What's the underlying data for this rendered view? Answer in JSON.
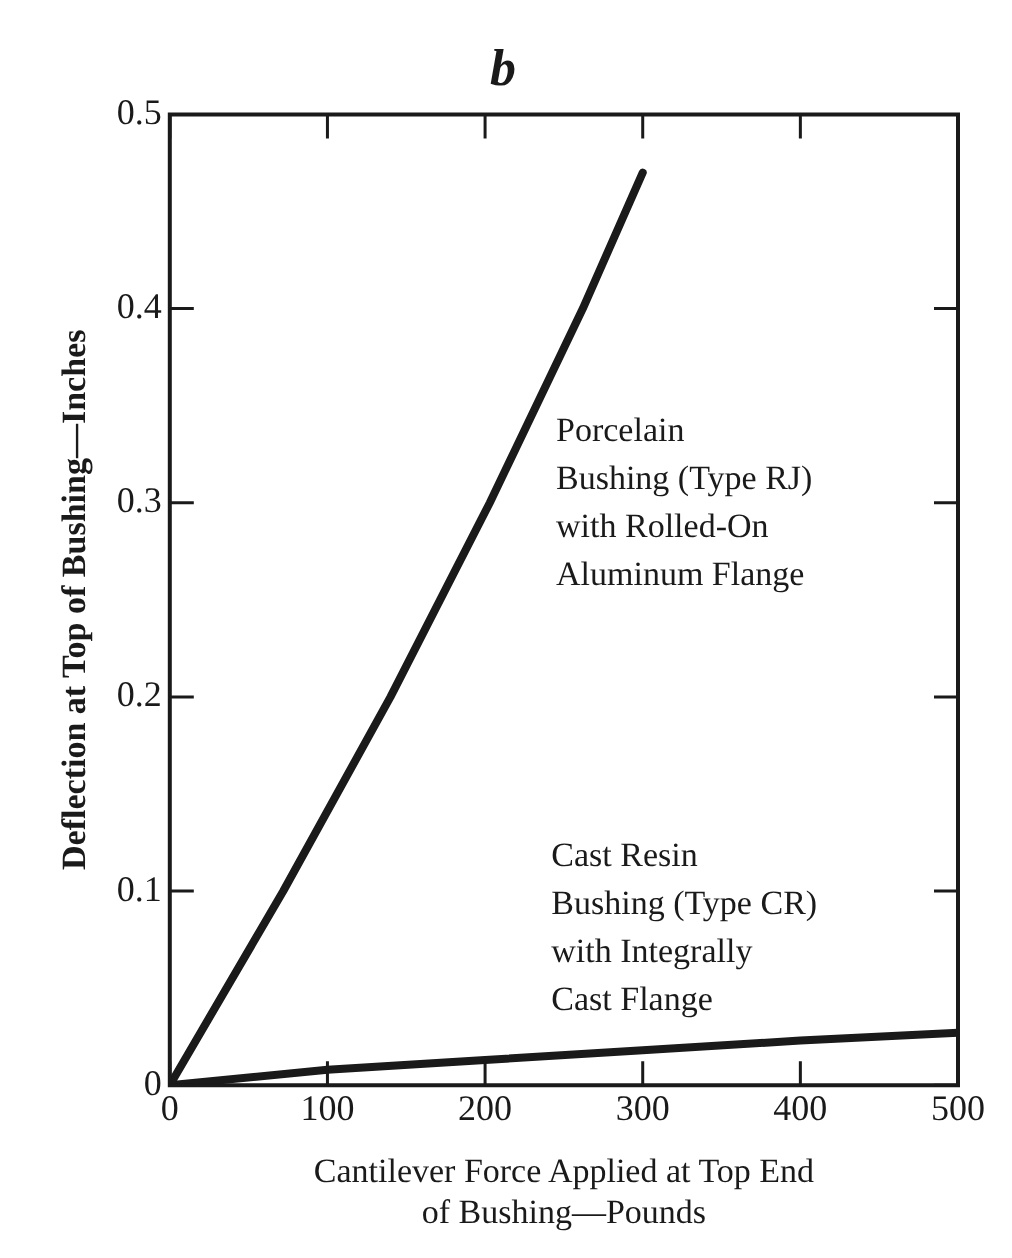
{
  "chart_data": {
    "type": "line",
    "title": "b",
    "xlabel": "Cantilever Force Applied at Top End\nof Bushing—Pounds",
    "ylabel": "Deflection at Top of Bushing—Inches",
    "series": [
      {
        "name": "Porcelain\nBushing (Type RJ)\nwith Rolled-On\nAluminum Flange",
        "color": "#1a1a1a",
        "x": [
          0,
          72,
          140,
          203,
          262,
          300
        ],
        "values": [
          0,
          0.1,
          0.2,
          0.3,
          0.4,
          0.47
        ]
      },
      {
        "name": "Cast Resin\nBushing (Type CR)\nwith Integrally\nCast Flange",
        "color": "#1a1a1a",
        "x": [
          0,
          100,
          200,
          300,
          400,
          500
        ],
        "values": [
          0,
          0.008,
          0.013,
          0.018,
          0.023,
          0.027
        ]
      }
    ],
    "xlim": [
      0,
      500
    ],
    "xticks": [
      0,
      100,
      200,
      300,
      400,
      500
    ],
    "ylim": [
      0,
      0.5
    ],
    "yticks": [
      0,
      0.1,
      0.2,
      0.3,
      0.4,
      0.5
    ],
    "grid": false,
    "legend": false,
    "marker": "none",
    "line_style": "solid"
  }
}
